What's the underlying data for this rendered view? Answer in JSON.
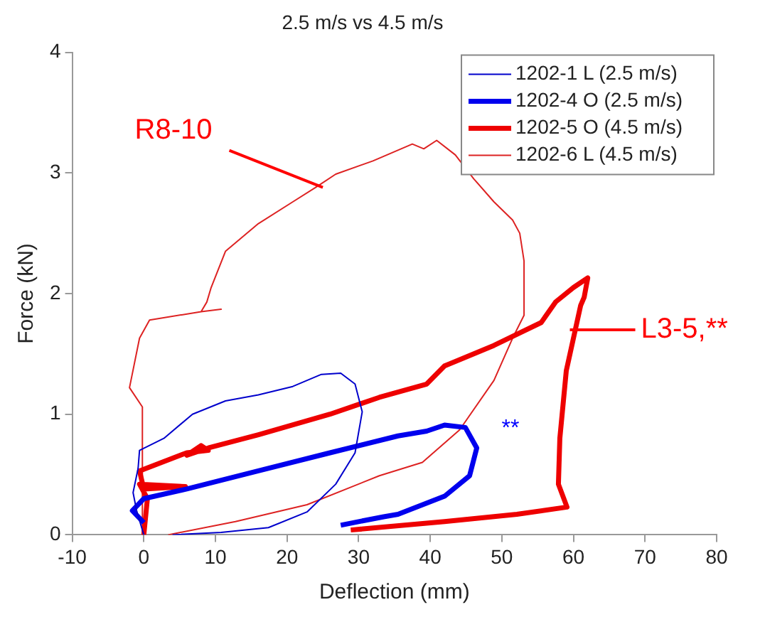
{
  "chart_data": {
    "type": "line",
    "title": "2.5 m/s vs 4.5 m/s",
    "xlabel": "Deflection (mm)",
    "ylabel": "Force (kN)",
    "xlim": [
      -10,
      80
    ],
    "xticks": [
      -10,
      0,
      10,
      20,
      30,
      40,
      50,
      60,
      70,
      80
    ],
    "ylim": [
      0,
      4
    ],
    "yticks": [
      0,
      1,
      2,
      3,
      4
    ],
    "grid": false,
    "legend": "top right",
    "marker": "none",
    "line_style": "solid",
    "series": [
      {
        "name": "1202-1 L (2.5 m/s)",
        "color": "#0000cc",
        "x": [
          0,
          -1,
          -1.5,
          -0.8,
          -0.6,
          2.8,
          6.8,
          11.4,
          16,
          20.8,
          24.8,
          27.5,
          29.5,
          30.5,
          29.5,
          26.8,
          22.8,
          17.4,
          10.8,
          4
        ],
        "values": [
          0,
          0.2,
          0.35,
          0.55,
          0.7,
          0.8,
          1,
          1.11,
          1.16,
          1.23,
          1.33,
          1.34,
          1.25,
          1.02,
          0.68,
          0.42,
          0.19,
          0.06,
          0.02,
          0
        ]
      },
      {
        "name": "1202-4 O (2.5 m/s)",
        "color": "#0000ee",
        "x": [
          0,
          -1.6,
          0,
          6,
          16,
          26,
          35.5,
          39.5,
          42,
          44.9,
          46.5,
          45.5,
          42,
          35.5,
          33.5,
          27.5
        ],
        "values": [
          0.1,
          0.2,
          0.3,
          0.38,
          0.53,
          0.68,
          0.82,
          0.86,
          0.91,
          0.89,
          0.72,
          0.49,
          0.32,
          0.17,
          0.15,
          0.08
        ]
      },
      {
        "name": "1202-5 O (4.5 m/s)",
        "color": "#ee0000",
        "x": [
          0,
          0.5,
          -0.6,
          5.8,
          0,
          -0.6,
          6,
          9,
          8,
          6,
          9,
          16,
          26,
          32.9,
          39.5,
          42,
          48.9,
          55.5,
          57.5,
          60,
          62,
          61.5,
          61,
          59,
          58.1,
          57.9,
          59.1,
          52.1,
          42,
          28.9
        ],
        "values": [
          0,
          0.3,
          0.42,
          0.4,
          0.38,
          0.53,
          0.68,
          0.7,
          0.74,
          0.66,
          0.72,
          0.83,
          1,
          1.14,
          1.25,
          1.4,
          1.57,
          1.76,
          1.93,
          2.05,
          2.13,
          1.97,
          1.9,
          1.36,
          0.8,
          0.42,
          0.23,
          0.17,
          0.11,
          0.04
        ]
      },
      {
        "name": "1202-6 L (4.5 m/s)",
        "color": "#dd2222",
        "x": [
          -0.2,
          -0.2,
          -2,
          -0.6,
          0.8,
          8,
          10.8,
          8,
          8.8,
          9.4,
          11.4,
          16,
          20.8,
          24,
          26.8,
          32,
          37.5,
          39.1,
          40.9,
          43.5,
          46.1,
          48.9,
          51.5,
          52.5,
          53.1,
          53.1,
          51.5,
          48.9,
          44.1,
          38.9,
          32.9,
          22.8,
          12.8,
          3.4
        ],
        "values": [
          0,
          1.06,
          1.22,
          1.63,
          1.78,
          1.85,
          1.87,
          1.85,
          1.93,
          2.05,
          2.35,
          2.58,
          2.76,
          2.88,
          2.99,
          3.1,
          3.24,
          3.2,
          3.27,
          3.15,
          2.95,
          2.76,
          2.61,
          2.5,
          2.27,
          1.82,
          1.63,
          1.28,
          0.87,
          0.6,
          0.49,
          0.25,
          0.11,
          0
        ]
      }
    ],
    "annotations": [
      {
        "text": "R8-10",
        "x": 25,
        "y": 2.88
      },
      {
        "text": "L3-5,**",
        "x": 59.5,
        "y": 1.7
      },
      "**"
    ]
  }
}
